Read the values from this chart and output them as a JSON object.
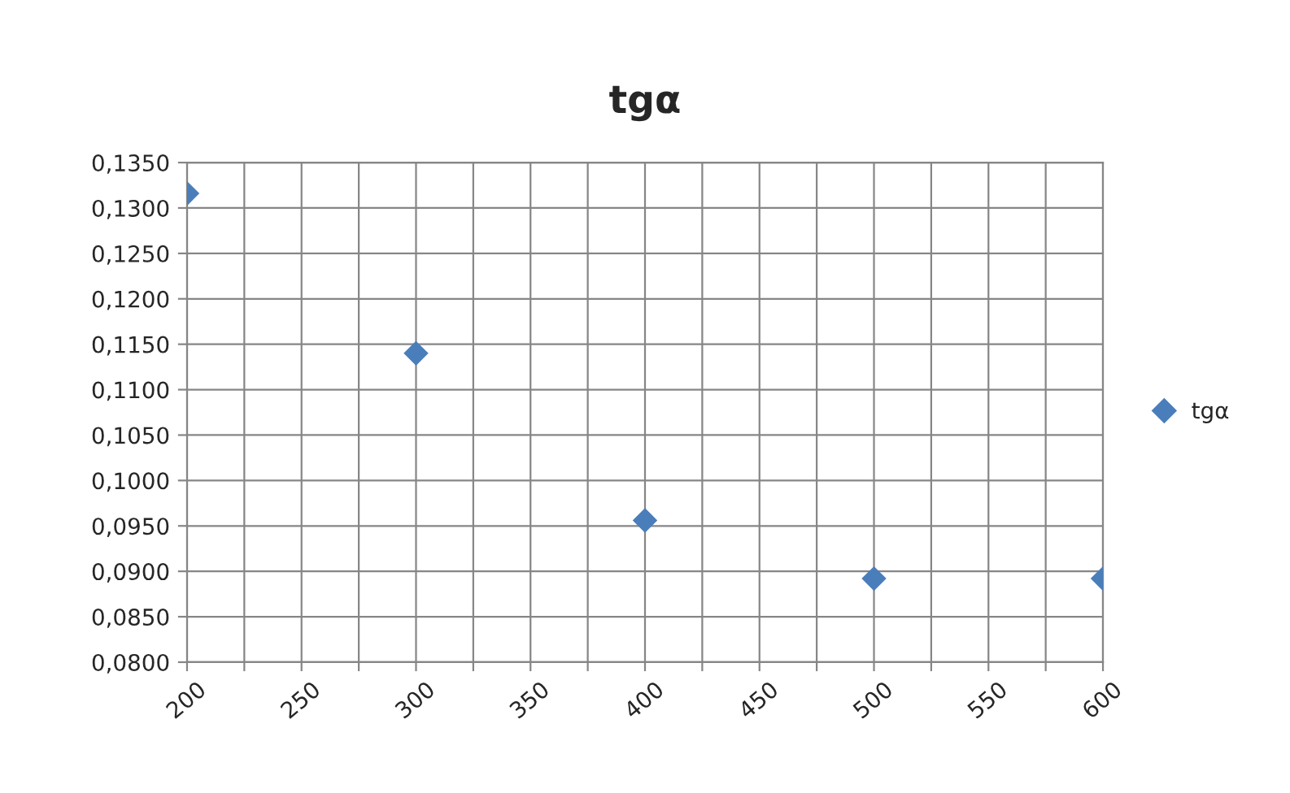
{
  "chart_data": {
    "type": "scatter",
    "title": "tgα",
    "x": [
      200,
      300,
      400,
      500,
      600
    ],
    "series": [
      {
        "name": "tgα",
        "color": "#4a7ebb",
        "values": [
          0.1316,
          0.114,
          0.0956,
          0.0892,
          0.0892
        ]
      }
    ],
    "xlim": [
      200,
      600
    ],
    "xticks": [
      200,
      {
        "value": 225,
        "label": null
      },
      250,
      {
        "value": 275,
        "label": null
      },
      300,
      {
        "value": 325,
        "label": null
      },
      350,
      {
        "value": 375,
        "label": null
      },
      400,
      {
        "value": 425,
        "label": null
      },
      450,
      {
        "value": 475,
        "label": null
      },
      500,
      {
        "value": 525,
        "label": null
      },
      550,
      {
        "value": 575,
        "label": null
      },
      600
    ],
    "ylim": [
      0.08,
      0.135
    ],
    "yticks": [
      {
        "value": 0.08,
        "label": "0,0800"
      },
      {
        "value": 0.085,
        "label": "0,0850"
      },
      {
        "value": 0.09,
        "label": "0,0900"
      },
      {
        "value": 0.095,
        "label": "0,0950"
      },
      {
        "value": 0.1,
        "label": "0,1000"
      },
      {
        "value": 0.105,
        "label": "0,1050"
      },
      {
        "value": 0.11,
        "label": "0,1100"
      },
      {
        "value": 0.115,
        "label": "0,1150"
      },
      {
        "value": 0.12,
        "label": "0,1200"
      },
      {
        "value": 0.125,
        "label": "0,1250"
      },
      {
        "value": 0.13,
        "label": "0,1300"
      },
      {
        "value": 0.135,
        "label": "0,1350"
      }
    ],
    "grid": true,
    "legend": "right",
    "marker": "diamond"
  }
}
